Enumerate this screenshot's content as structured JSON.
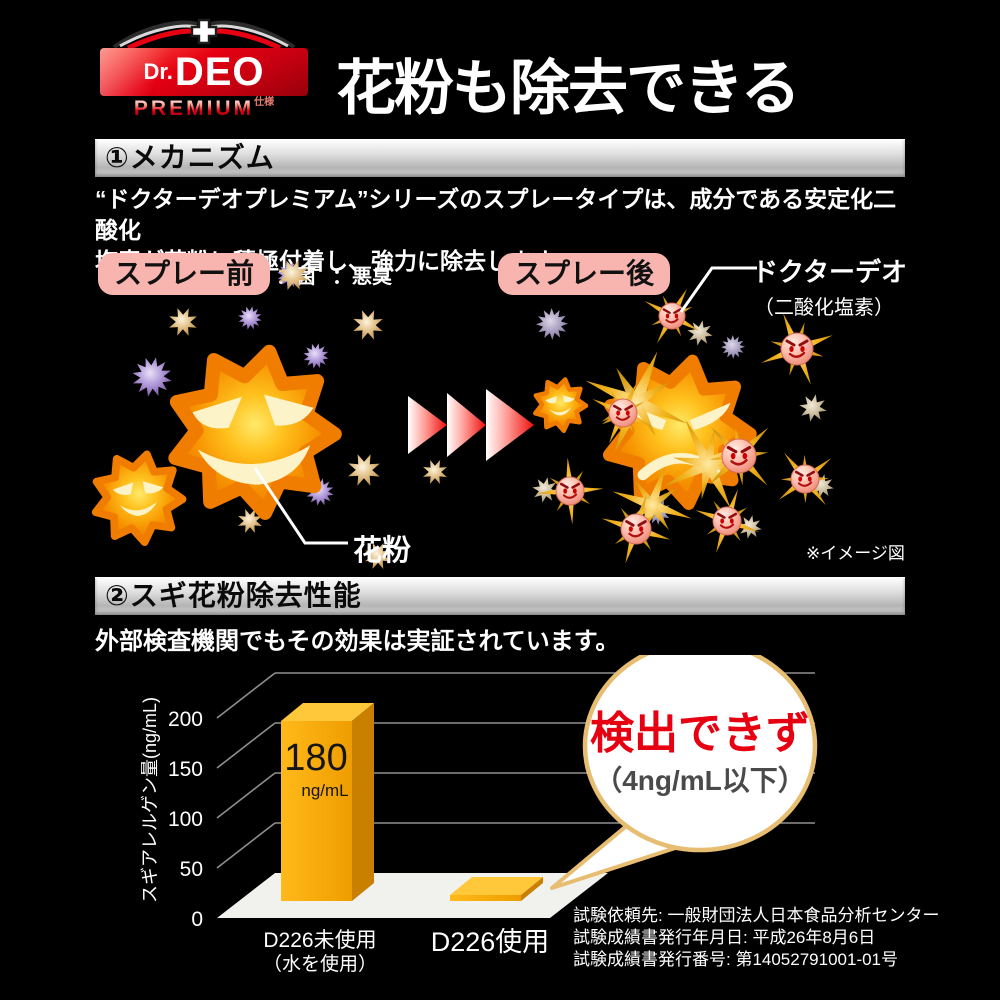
{
  "header": {
    "brand": {
      "dr": "Dr.",
      "deo": "DEO",
      "sub": "PREMIUM",
      "sub_suffix": "仕様"
    },
    "headline": "花粉も除去できる"
  },
  "mechanism": {
    "section_title": "①メカニズム",
    "description": "“ドクターデオプレミアム”シリーズのスプレータイプは、成分である安定化二酸化\n塩素が花粉に積極付着し、強力に除去します。",
    "before_label": "スプレー前",
    "after_label": "スプレー後",
    "legend": [
      {
        "icon": "bacteria-icon",
        "label": "：菌",
        "color": "#9b7fd4"
      },
      {
        "icon": "odor-icon",
        "label": "：悪臭",
        "color": "#d9b36a"
      }
    ],
    "deo_callout": {
      "line1": "ドクターデオ",
      "line2": "（二酸化塩素）"
    },
    "pollen_label": "花粉",
    "image_note": "※イメージ図"
  },
  "performance": {
    "section_title": "②スギ花粉除去性能",
    "lead": "外部検査機関でもその効果は実証されています。",
    "notes": [
      "試験依頼先: 一般財団法人日本食品分析センター",
      "試験成績書発行年月日: 平成26年8月6日",
      "試験成績書発行番号: 第14052791001-01号"
    ]
  },
  "chart_data": {
    "type": "bar",
    "style": "3d-bar",
    "title": "",
    "ylabel": "スギアレルゲン量(ng/mL)",
    "ylim": [
      0,
      200
    ],
    "yticks": [
      0,
      50,
      100,
      150,
      200
    ],
    "categories": [
      "D226未使用",
      "D226使用"
    ],
    "category_subs": [
      "（水を使用）",
      ""
    ],
    "values": [
      180,
      2
    ],
    "bar_labels": [
      {
        "value": "180",
        "unit": "ng/mL"
      },
      null
    ],
    "annotation": {
      "text": "検出できず",
      "sub": "（4ng/mL以下）",
      "target": "D226使用",
      "text_color": "#e60012"
    },
    "bar_color": "#f5a800",
    "grid": true,
    "legend_position": "none"
  },
  "colors": {
    "background": "#000000",
    "brand_red": "#e60012",
    "label_pink": "#f8b5b0",
    "bar_gold": "#f5a800",
    "bubble_border": "#e7bd72"
  }
}
